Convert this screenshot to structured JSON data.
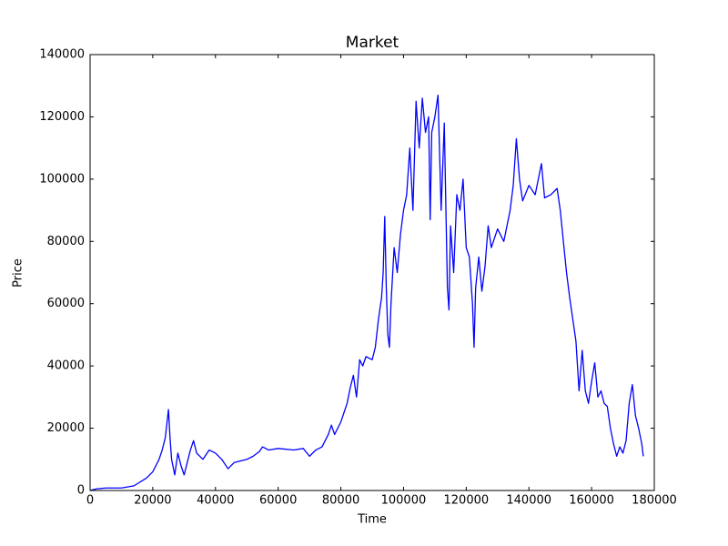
{
  "chart_data": {
    "type": "line",
    "title": "Market",
    "x_label": "Time",
    "y_label": "Price",
    "color": "#0000ff",
    "x": [
      0,
      2000,
      5000,
      10000,
      14000,
      18000,
      20000,
      22000,
      23000,
      24000,
      25000,
      25500,
      26000,
      27000,
      28000,
      29000,
      30000,
      31000,
      32000,
      33000,
      34000,
      36000,
      38000,
      40000,
      42000,
      44000,
      46000,
      48000,
      50000,
      52000,
      54000,
      55000,
      57000,
      60000,
      65000,
      68000,
      70000,
      72000,
      74000,
      76000,
      77000,
      78000,
      80000,
      82000,
      83000,
      84000,
      85000,
      86000,
      87000,
      88000,
      90000,
      91000,
      92000,
      93000,
      93500,
      94000,
      94500,
      95000,
      95500,
      96000,
      97000,
      98000,
      99000,
      100000,
      101000,
      102000,
      103000,
      104000,
      105000,
      106000,
      107000,
      108000,
      108500,
      109000,
      110000,
      111000,
      112000,
      113000,
      114000,
      114500,
      115000,
      116000,
      117000,
      118000,
      119000,
      120000,
      121000,
      122000,
      122500,
      123000,
      124000,
      125000,
      126000,
      127000,
      128000,
      130000,
      132000,
      134000,
      135000,
      136000,
      137000,
      138000,
      140000,
      142000,
      143000,
      144000,
      145000,
      147000,
      149000,
      150000,
      151000,
      152000,
      153000,
      154000,
      155000,
      156000,
      157000,
      158000,
      159000,
      160000,
      161000,
      162000,
      163000,
      164000,
      165000,
      166000,
      167000,
      168000,
      169000,
      170000,
      171000,
      172000,
      173000,
      174000,
      175000,
      176000,
      176500
    ],
    "values": [
      0,
      500,
      800,
      800,
      1500,
      4000,
      6000,
      10000,
      13000,
      17000,
      26000,
      17000,
      10000,
      5000,
      12000,
      8000,
      5000,
      9000,
      13000,
      16000,
      12000,
      10000,
      13000,
      12000,
      10000,
      7000,
      9000,
      9500,
      10000,
      11000,
      12500,
      14000,
      13000,
      13500,
      13000,
      13500,
      11000,
      13000,
      14000,
      18000,
      21000,
      18000,
      22000,
      28000,
      33000,
      37000,
      30000,
      42000,
      40000,
      43000,
      42000,
      46000,
      55000,
      62000,
      70000,
      88000,
      65000,
      50000,
      46000,
      60000,
      78000,
      70000,
      82000,
      90000,
      95000,
      110000,
      90000,
      125000,
      110000,
      126000,
      115000,
      120000,
      87000,
      115000,
      120000,
      127000,
      90000,
      118000,
      65000,
      58000,
      85000,
      70000,
      95000,
      90000,
      100000,
      78000,
      75000,
      60000,
      46000,
      65000,
      75000,
      64000,
      72000,
      85000,
      78000,
      84000,
      80000,
      90000,
      98000,
      113000,
      100000,
      93000,
      98000,
      95000,
      100000,
      105000,
      94000,
      95000,
      97000,
      90000,
      80000,
      70000,
      62000,
      55000,
      48000,
      32000,
      45000,
      32000,
      28000,
      35000,
      41000,
      30000,
      32000,
      28000,
      27000,
      20000,
      15000,
      11000,
      14000,
      12000,
      16000,
      28000,
      34000,
      24000,
      20000,
      15000,
      11000
    ],
    "xlim": [
      0,
      180000
    ],
    "xticks": [
      0,
      20000,
      40000,
      60000,
      80000,
      100000,
      120000,
      140000,
      160000,
      180000
    ],
    "ylim": [
      0,
      140000
    ],
    "yticks": [
      0,
      20000,
      40000,
      60000,
      80000,
      100000,
      120000,
      140000
    ]
  }
}
